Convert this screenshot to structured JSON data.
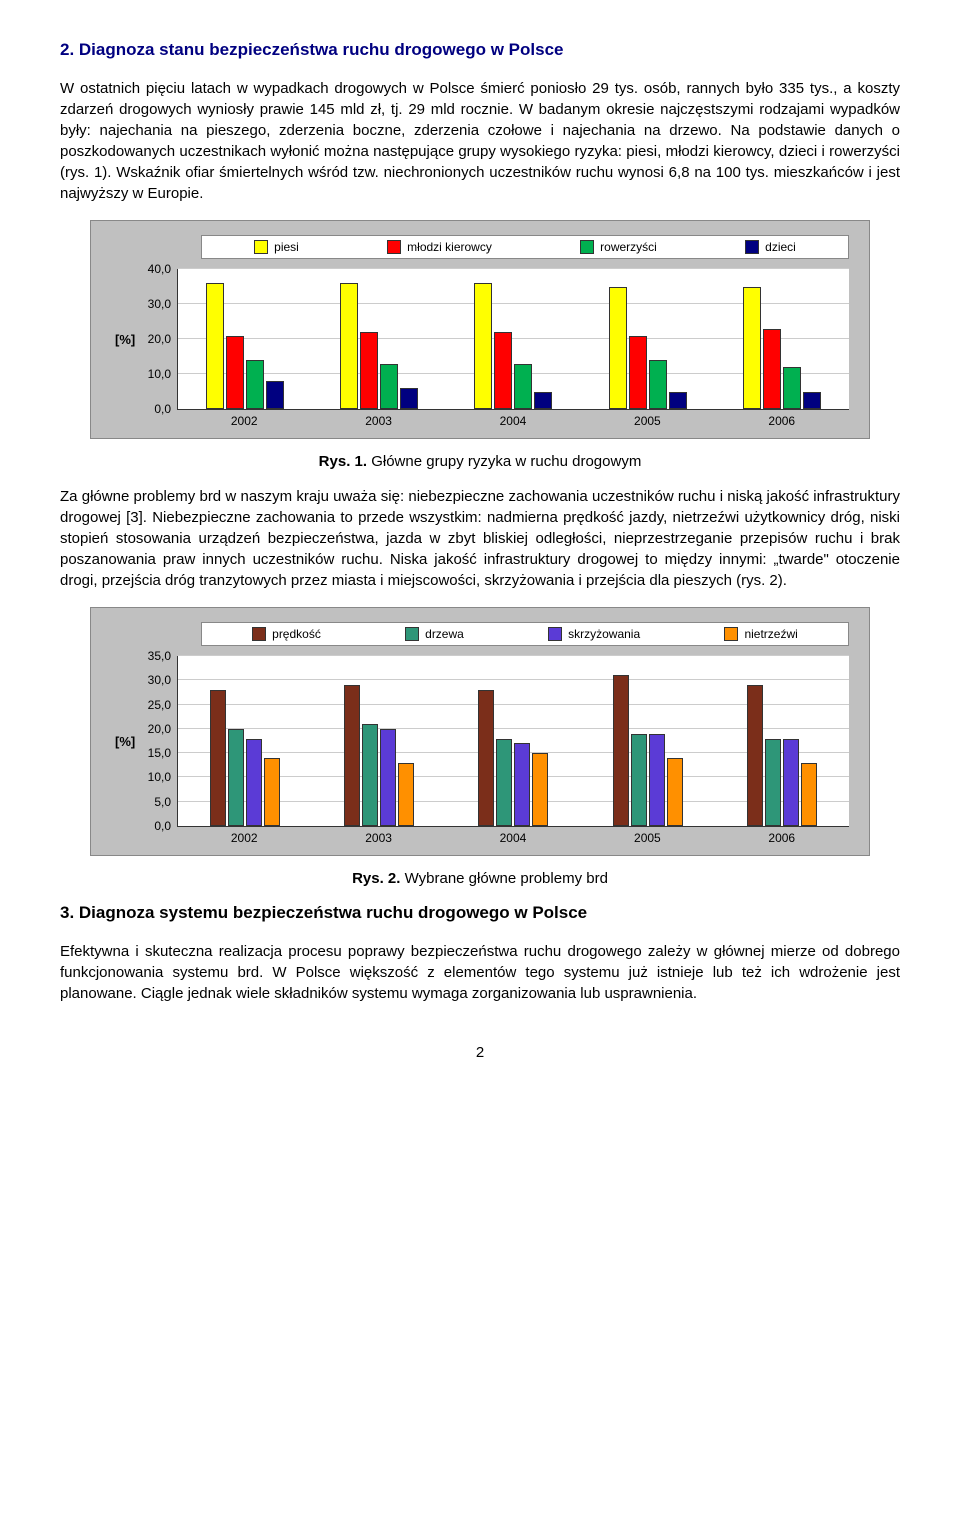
{
  "heading1": "2. Diagnoza stanu bezpieczeństwa ruchu drogowego w Polsce",
  "para1": "W ostatnich pięciu latach w wypadkach drogowych w Polsce śmierć poniosło 29 tys. osób, rannych było 335 tys., a koszty zdarzeń drogowych wyniosły prawie 145 mld zł, tj. 29 mld rocznie. W badanym okresie najczęstszymi rodzajami wypadków były: najechania na pieszego, zderzenia boczne, zderzenia czołowe i najechania na drzewo. Na podstawie danych o poszkodowanych uczestnikach wyłonić można następujące grupy wysokiego ryzyka: piesi, młodzi kierowcy, dzieci i rowerzyści (rys. 1). Wskaźnik ofiar śmiertelnych wśród tzw. niechronionych uczestników ruchu wynosi 6,8 na 100 tys. mieszkańców i jest najwyższy w Europie.",
  "chart1": {
    "legend": [
      {
        "label": "piesi",
        "color": "#ffff00"
      },
      {
        "label": "młodzi kierowcy",
        "color": "#ff0000"
      },
      {
        "label": "rowerzyści",
        "color": "#00b050"
      },
      {
        "label": "dzieci",
        "color": "#000080"
      }
    ],
    "ylab": "[%]",
    "ymax": 40,
    "yticks": [
      "40,0",
      "30,0",
      "20,0",
      "10,0",
      "0,0"
    ],
    "height": 140,
    "categories": [
      "2002",
      "2003",
      "2004",
      "2005",
      "2006"
    ],
    "series": {
      "piesi": [
        36,
        36,
        36,
        35,
        35
      ],
      "mlodzi_kierowcy": [
        21,
        22,
        22,
        21,
        23
      ],
      "rowerzysci": [
        14,
        13,
        13,
        14,
        12
      ],
      "dzieci": [
        8,
        6,
        5,
        5,
        5
      ]
    }
  },
  "caption1_b": "Rys. 1.",
  "caption1_t": " Główne grupy ryzyka w ruchu drogowym",
  "para2": "Za główne problemy brd w naszym kraju uważa się: niebezpieczne zachowania uczestników ruchu i niską jakość infrastruktury drogowej [3]. Niebezpieczne zachowania to przede wszystkim: nadmierna prędkość jazdy, nietrzeźwi użytkownicy dróg, niski stopień stosowania urządzeń bezpieczeństwa, jazda w zbyt bliskiej odległości, nieprzestrzeganie przepisów ruchu i brak poszanowania praw innych uczestników ruchu. Niska jakość infrastruktury drogowej to między innymi: „twarde\" otoczenie drogi, przejścia dróg tranzytowych przez miasta i miejscowości, skrzyżowania i przejścia dla pieszych (rys. 2).",
  "chart2": {
    "legend": [
      {
        "label": "prędkość",
        "color": "#7b2e1a"
      },
      {
        "label": "drzewa",
        "color": "#2e9678"
      },
      {
        "label": "skrzyżowania",
        "color": "#5b3bd6"
      },
      {
        "label": "nietrzeźwi",
        "color": "#ff9000"
      }
    ],
    "ylab": "[%]",
    "ymax": 35,
    "yticks": [
      "35,0",
      "30,0",
      "25,0",
      "20,0",
      "15,0",
      "10,0",
      "5,0",
      "0,0"
    ],
    "height": 170,
    "categories": [
      "2002",
      "2003",
      "2004",
      "2005",
      "2006"
    ],
    "series": {
      "predkosc": [
        28,
        29,
        28,
        31,
        29
      ],
      "drzewa": [
        20,
        21,
        18,
        19,
        18
      ],
      "skrzyzowania": [
        18,
        20,
        17,
        19,
        18
      ],
      "nietrzezwi": [
        14,
        13,
        15,
        14,
        13
      ]
    }
  },
  "caption2_b": "Rys. 2.",
  "caption2_t": " Wybrane główne problemy brd",
  "heading2": "3. Diagnoza systemu bezpieczeństwa ruchu drogowego w Polsce",
  "para3": "Efektywna i skuteczna realizacja procesu poprawy bezpieczeństwa ruchu drogowego zależy w głównej mierze od dobrego funkcjonowania systemu brd. W Polsce większość z elementów tego systemu już istnieje lub też ich wdrożenie jest planowane. Ciągle jednak wiele składników systemu wymaga zorganizowania lub usprawnienia.",
  "pagenum": "2"
}
